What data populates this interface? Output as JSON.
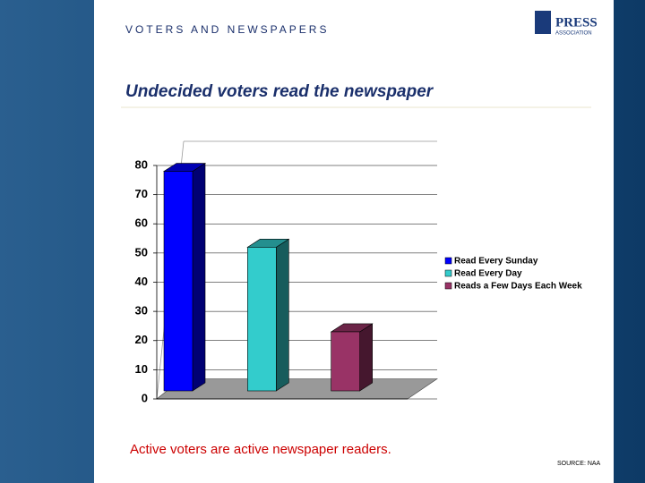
{
  "header": {
    "section": "VOTERS AND NEWSPAPERS",
    "logo": [
      "PRESS",
      "ASSOCIATION"
    ]
  },
  "chart_data": {
    "type": "bar3d",
    "title": "Undecided voters read the newspaper",
    "series": [
      {
        "name": "Read Every Sunday",
        "color": "#0000ff",
        "values": [
          78
        ]
      },
      {
        "name": "Read Every Day",
        "color": "#33cccc",
        "values": [
          52
        ]
      },
      {
        "name": "Reads a Few Days Each Week",
        "color": "#993366",
        "values": [
          23
        ]
      }
    ],
    "ylim": [
      0,
      80
    ],
    "yticks": [
      0,
      10,
      20,
      30,
      40,
      50,
      60,
      70,
      80
    ],
    "grid": true,
    "legend": "right"
  },
  "footer": {
    "caption": "Active voters are active newspaper readers.",
    "source": "SOURCE: NAA"
  }
}
